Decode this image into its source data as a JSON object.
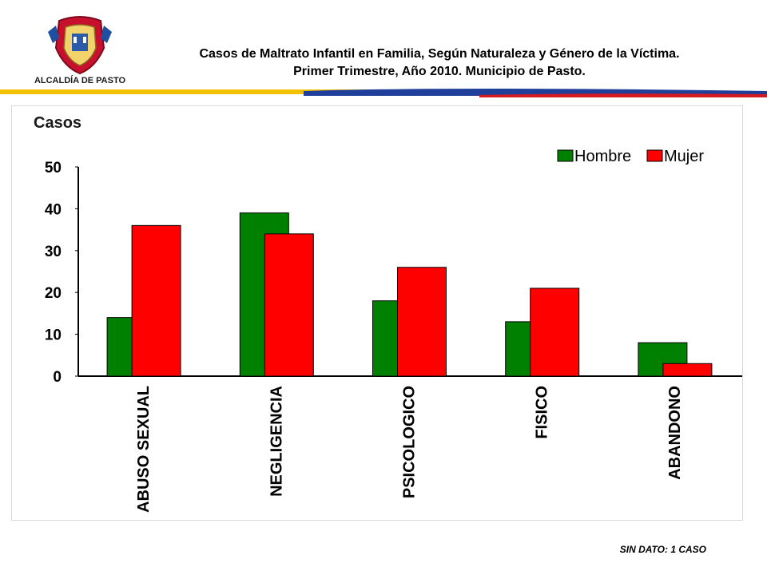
{
  "header": {
    "logo_text": "ALCALDÍA DE PASTO",
    "title_line1": "Casos de Maltrato Infantil en Familia, Según Naturaleza y Género de la Víctima.",
    "title_line2": "Primer Trimestre, Año 2010. Municipio de Pasto."
  },
  "colors": {
    "hombre": "#008000",
    "mujer": "#ff0000",
    "stripe_yellow": "#f2c200",
    "stripe_blue": "#1f3f9a",
    "stripe_red": "#d71920"
  },
  "chart_data": {
    "type": "bar",
    "ylabel": "Casos",
    "xlabel": "",
    "ylim": [
      0,
      50
    ],
    "yticks": [
      0,
      10,
      20,
      30,
      40,
      50
    ],
    "categories": [
      "ABUSO SEXUAL",
      "NEGLIGENCIA",
      "PSICOLOGICO",
      "FISICO",
      "ABANDONO"
    ],
    "series": [
      {
        "name": "Hombre",
        "values": [
          14,
          39,
          18,
          13,
          8
        ]
      },
      {
        "name": "Mujer",
        "values": [
          36,
          34,
          26,
          21,
          3
        ]
      }
    ],
    "legend_position": "top-right",
    "grid": false
  },
  "footnote": "SIN DATO:  1 CASO"
}
